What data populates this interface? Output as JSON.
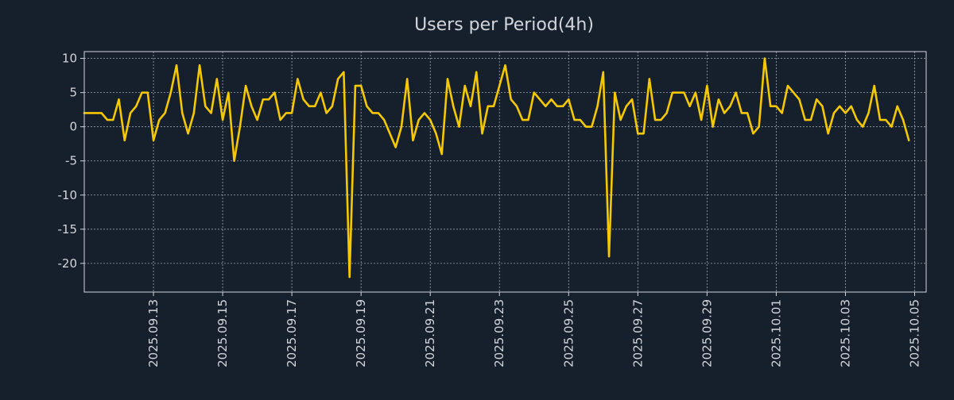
{
  "chart_data": {
    "type": "line",
    "title": "Users per Period(4h)",
    "xlabel": "",
    "ylabel": "",
    "ylim": [
      -24.2,
      11
    ],
    "yticks": [
      10,
      5,
      0,
      -5,
      -10,
      -15,
      -20
    ],
    "ytick_labels": [
      "10",
      "5",
      "0",
      "-5",
      "-10",
      "-15",
      "-20"
    ],
    "xlim": [
      "2025-09-11T00:00",
      "2025-10-05T08:00"
    ],
    "xticks": [
      "2025.09.13",
      "2025.09.15",
      "2025.09.17",
      "2025.09.19",
      "2025.09.21",
      "2025.09.23",
      "2025.09.25",
      "2025.09.27",
      "2025.09.29",
      "2025.10.01",
      "2025.10.03",
      "2025.10.05"
    ],
    "grid": true,
    "colors": {
      "background": "#16202d",
      "line": "#f5c800",
      "text": "#d2d6db",
      "grid": "#b9bfc6"
    },
    "series": [
      {
        "name": "Users",
        "start": "2025-09-11T00:00",
        "interval_hours": 4,
        "values": [
          2,
          2,
          2,
          2,
          1,
          1,
          4,
          -2,
          2,
          3,
          5,
          5,
          -2,
          1,
          2,
          5,
          9,
          2,
          -1,
          2,
          9,
          3,
          2,
          7,
          1,
          5,
          -5,
          0,
          6,
          3,
          1,
          4,
          4,
          5,
          1,
          2,
          2,
          7,
          4,
          3,
          3,
          5,
          2,
          3,
          7,
          8,
          -22,
          6,
          6,
          3,
          2,
          2,
          1,
          -1,
          -3,
          0,
          7,
          -2,
          1,
          2,
          1,
          -1,
          -4,
          7,
          3,
          0,
          6,
          3,
          8,
          -1,
          3,
          3,
          6,
          9,
          4,
          3,
          1,
          1,
          5,
          4,
          3,
          4,
          3,
          3,
          4,
          1,
          1,
          0,
          0,
          3,
          8,
          -19,
          5,
          1,
          3,
          4,
          -1,
          -1,
          7,
          1,
          1,
          2,
          5,
          5,
          5,
          3,
          5,
          1,
          6,
          0,
          4,
          2,
          3,
          5,
          2,
          2,
          -1,
          0,
          10,
          3,
          3,
          2,
          6,
          5,
          4,
          1,
          1,
          4,
          3,
          -1,
          2,
          3,
          2,
          3,
          1,
          0,
          2,
          6,
          1,
          1,
          0,
          3,
          1,
          -2
        ]
      }
    ]
  }
}
